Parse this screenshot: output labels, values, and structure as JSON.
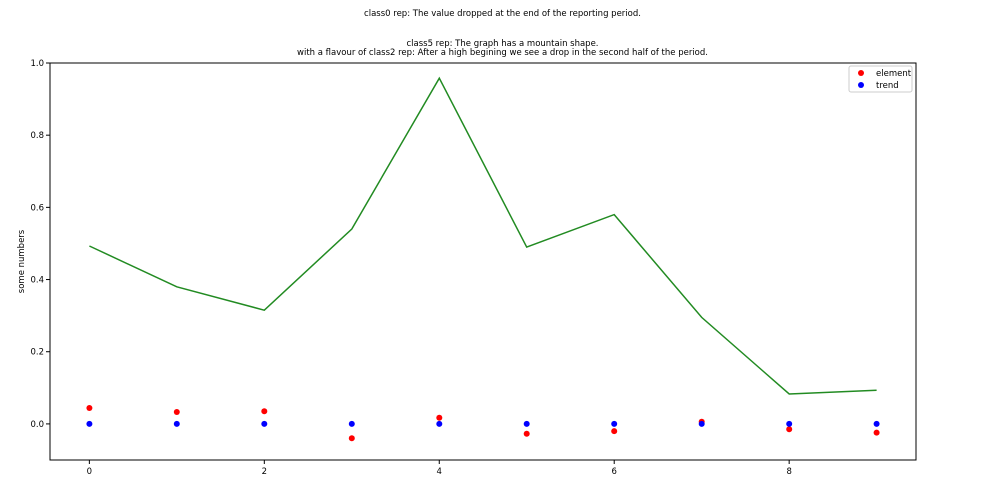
{
  "suptitle": "class0 rep: The value dropped at the end of the reporting period.",
  "axes_title_line1": "class5 rep: The graph has a mountain shape.",
  "axes_title_line2": "with a flavour of class2 rep: After a high begining we see a drop in the second half of the period.",
  "chart_data": {
    "type": "line",
    "title": "class5 rep: The graph has a mountain shape.\nwith a flavour of class2 rep: After a high begining we see a drop in the second half of the period.",
    "xlabel": "",
    "ylabel": "some numbers",
    "xlim": [
      -0.45,
      9.45
    ],
    "ylim": [
      -0.1,
      1.0
    ],
    "xticks": [
      0,
      2,
      4,
      6,
      8
    ],
    "xtick_labels": [
      "0",
      "2",
      "4",
      "6",
      "8"
    ],
    "yticks": [
      0.0,
      0.2,
      0.4,
      0.6,
      0.8,
      1.0
    ],
    "ytick_labels": [
      "0.0",
      "0.2",
      "0.4",
      "0.6",
      "0.8",
      "1.0"
    ],
    "grid": false,
    "legend_position": "top-right",
    "x": [
      0,
      1,
      2,
      3,
      4,
      5,
      6,
      7,
      8,
      9
    ],
    "series": [
      {
        "kind": "line",
        "color": "#228b22",
        "values": [
          0.493,
          0.38,
          0.315,
          0.54,
          0.958,
          0.49,
          0.58,
          0.295,
          0.083,
          0.093
        ]
      },
      {
        "name": "element",
        "kind": "scatter",
        "color": "#ff0000",
        "values": [
          0.044,
          0.033,
          0.035,
          -0.04,
          0.017,
          -0.027,
          -0.02,
          0.006,
          -0.015,
          -0.024
        ]
      },
      {
        "name": "trend",
        "kind": "scatter",
        "color": "#0000ff",
        "values": [
          0.0,
          0.0,
          0.0,
          0.0,
          0.0,
          0.0,
          0.0,
          0.0,
          0.0,
          0.0
        ]
      }
    ]
  }
}
